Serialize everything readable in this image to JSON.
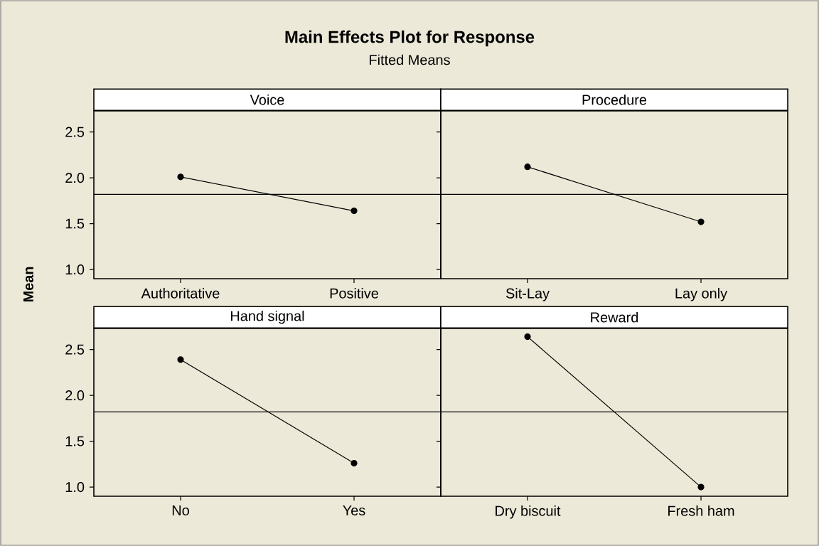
{
  "chart_data": [
    {
      "type": "line",
      "title": "Main Effects Plot for Response",
      "subtitle": "Fitted Means",
      "ylabel": "Mean",
      "categories": [
        "Authoritative",
        "Positive"
      ],
      "series": [
        {
          "name": "Voice",
          "color": "#000000",
          "values": [
            2.01,
            1.64
          ]
        }
      ],
      "ylim": [
        0.9,
        2.73
      ],
      "yticks": [
        {
          "value": 1,
          "label": "1.0"
        },
        {
          "value": 1.5,
          "label": "1.5"
        },
        {
          "value": 2,
          "label": "2.0"
        },
        {
          "value": 2.5,
          "label": "2.5"
        }
      ],
      "ref_lines": [
        {
          "axis": "y",
          "value": 1.82,
          "color": "#000000"
        }
      ],
      "marker": "circle"
    },
    {
      "type": "line",
      "categories": [
        "Sit-Lay",
        "Lay only"
      ],
      "series": [
        {
          "name": "Procedure",
          "color": "#000000",
          "values": [
            2.12,
            1.52
          ]
        }
      ],
      "ylim": [
        0.9,
        2.73
      ],
      "ref_lines": [
        {
          "axis": "y",
          "value": 1.82,
          "color": "#000000"
        }
      ],
      "marker": "circle",
      "tick_labels": "x"
    },
    {
      "type": "line",
      "categories": [
        "No",
        "Yes"
      ],
      "series": [
        {
          "name": "Hand signal",
          "color": "#000000",
          "values": [
            2.39,
            1.26
          ]
        }
      ],
      "ylim": [
        0.9,
        2.73
      ],
      "yticks": [
        {
          "value": 1,
          "label": "1.0"
        },
        {
          "value": 1.5,
          "label": "1.5"
        },
        {
          "value": 2,
          "label": "2.0"
        },
        {
          "value": 2.5,
          "label": "2.5"
        }
      ],
      "ref_lines": [
        {
          "axis": "y",
          "value": 1.82,
          "color": "#000000"
        }
      ],
      "marker": "circle"
    },
    {
      "type": "line",
      "categories": [
        "Dry biscuit",
        "Fresh ham"
      ],
      "series": [
        {
          "name": "Reward",
          "color": "#000000",
          "values": [
            2.64,
            1.0
          ]
        }
      ],
      "ylim": [
        0.9,
        2.73
      ],
      "ref_lines": [
        {
          "axis": "y",
          "value": 1.82,
          "color": "#000000"
        }
      ],
      "marker": "circle",
      "tick_labels": "x"
    }
  ]
}
